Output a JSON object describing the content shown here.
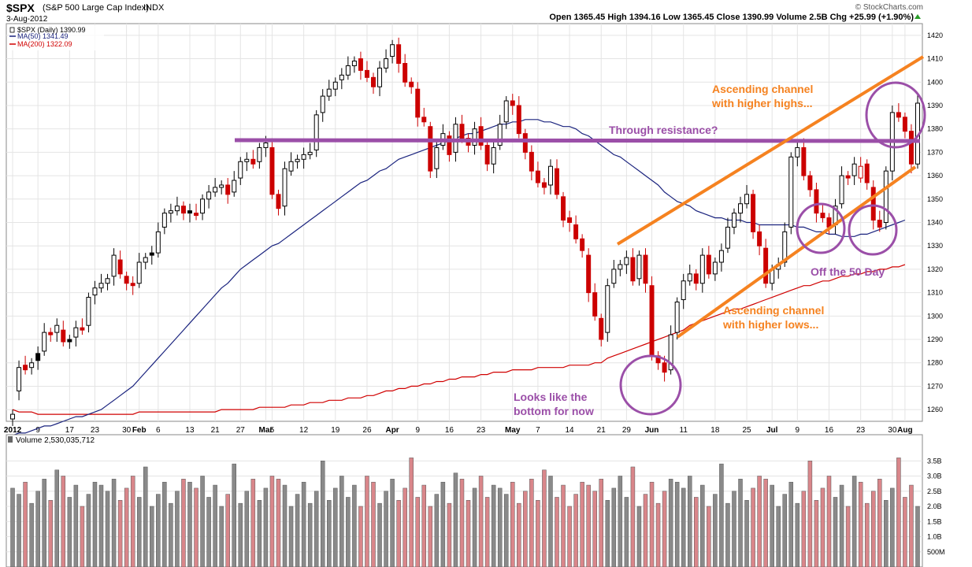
{
  "header": {
    "symbol": "$SPX",
    "name": "(S&P 500 Large Cap Index)",
    "exchange": "INDX",
    "date": "3-Aug-2012",
    "brand": "© StockCharts.com",
    "quote_line": "Open 1365.45  High 1394.16  Low 1365.45  Close 1390.99  Volume 2.5B  Chg +25.99 (+1.90%)"
  },
  "legend": {
    "price": "$SPX (Daily) 1390.99",
    "ma50": "MA(50) 1341.49",
    "ma200": "MA(200) 1322.09"
  },
  "volume_label": "Volume 2,530,035,712",
  "colors": {
    "up": "#000000",
    "down": "#cc0000",
    "ma50": "#1a237e",
    "ma200": "#d00000",
    "channel": "#f58220",
    "resistance": "#9b4fa8",
    "annot_orange": "#f58220",
    "annot_purple": "#9b4fa8",
    "vol_gray": "#8a8a8a",
    "vol_red": "#d9868a"
  },
  "chart_data": {
    "type": "candlestick",
    "ylim": [
      1255,
      1425
    ],
    "y_ticks": [
      1260,
      1270,
      1280,
      1290,
      1300,
      1310,
      1320,
      1330,
      1340,
      1350,
      1360,
      1370,
      1380,
      1390,
      1400,
      1410,
      1420
    ],
    "x_ticks": [
      {
        "label": "2012",
        "i": 0,
        "bold": true
      },
      {
        "label": "9",
        "i": 4
      },
      {
        "label": "17",
        "i": 9
      },
      {
        "label": "23",
        "i": 13
      },
      {
        "label": "30",
        "i": 18
      },
      {
        "label": "Feb",
        "i": 20,
        "bold": true
      },
      {
        "label": "6",
        "i": 23
      },
      {
        "label": "13",
        "i": 28
      },
      {
        "label": "21",
        "i": 32
      },
      {
        "label": "27",
        "i": 36
      },
      {
        "label": "Mar",
        "i": 40,
        "bold": true
      },
      {
        "label": "5",
        "i": 41
      },
      {
        "label": "12",
        "i": 46
      },
      {
        "label": "19",
        "i": 51
      },
      {
        "label": "26",
        "i": 56
      },
      {
        "label": "Apr",
        "i": 60,
        "bold": true
      },
      {
        "label": "9",
        "i": 64
      },
      {
        "label": "16",
        "i": 69
      },
      {
        "label": "23",
        "i": 74
      },
      {
        "label": "May",
        "i": 79,
        "bold": true
      },
      {
        "label": "7",
        "i": 83
      },
      {
        "label": "14",
        "i": 88
      },
      {
        "label": "21",
        "i": 93
      },
      {
        "label": "29",
        "i": 97
      },
      {
        "label": "Jun",
        "i": 101,
        "bold": true
      },
      {
        "label": "11",
        "i": 106
      },
      {
        "label": "18",
        "i": 111
      },
      {
        "label": "25",
        "i": 116
      },
      {
        "label": "Jul",
        "i": 120,
        "bold": true
      },
      {
        "label": "9",
        "i": 124
      },
      {
        "label": "16",
        "i": 129
      },
      {
        "label": "23",
        "i": 134
      },
      {
        "label": "30",
        "i": 139
      },
      {
        "label": "Aug",
        "i": 141,
        "bold": true
      }
    ],
    "closes": [
      1258,
      1278,
      1277,
      1280,
      1281,
      1293,
      1292,
      1296,
      1289,
      1289,
      1295,
      1294,
      1308,
      1312,
      1314,
      1316,
      1326,
      1318,
      1314,
      1313,
      1323,
      1325,
      1326,
      1336,
      1344,
      1345,
      1347,
      1344,
      1344,
      1343,
      1350,
      1353,
      1355,
      1356,
      1352,
      1358,
      1366,
      1367,
      1365,
      1372,
      1374,
      1352,
      1346,
      1363,
      1366,
      1367,
      1369,
      1370,
      1386,
      1394,
      1397,
      1400,
      1403,
      1407,
      1409,
      1405,
      1402,
      1398,
      1406,
      1410,
      1416,
      1408,
      1400,
      1398,
      1385,
      1383,
      1362,
      1372,
      1378,
      1369,
      1382,
      1376,
      1373,
      1380,
      1373,
      1365,
      1372,
      1382,
      1392,
      1390,
      1378,
      1370,
      1362,
      1357,
      1355,
      1364,
      1352,
      1341,
      1340,
      1333,
      1328,
      1310,
      1300,
      1290,
      1313,
      1320,
      1322,
      1325,
      1315,
      1326,
      1314,
      1283,
      1280,
      1276,
      1292,
      1306,
      1315,
      1318,
      1314,
      1326,
      1318,
      1323,
      1328,
      1338,
      1344,
      1348,
      1352,
      1336,
      1330,
      1314,
      1320,
      1322,
      1336,
      1368,
      1372,
      1360,
      1354,
      1344,
      1342,
      1338,
      1347,
      1360,
      1359,
      1365,
      1364,
      1357,
      1341,
      1338,
      1362,
      1387,
      1385,
      1379,
      1365,
      1391
    ],
    "open_offsets": [
      -2,
      -10,
      2,
      -2,
      3,
      -8,
      1,
      -3,
      5,
      1,
      -4,
      1,
      -12,
      -3,
      -2,
      -2,
      -9,
      6,
      3,
      1,
      -9,
      -2,
      1,
      -9,
      -6,
      -1,
      -2,
      3,
      1,
      1,
      -6,
      -3,
      -2,
      -1,
      4,
      -5,
      -7,
      -1,
      2,
      -6,
      -2,
      20,
      6,
      -16,
      -4,
      -1,
      -2,
      -1,
      -15,
      -7,
      -3,
      -3,
      -2,
      -4,
      -2,
      5,
      3,
      4,
      -8,
      -4,
      -5,
      8,
      8,
      2,
      12,
      2,
      19,
      -9,
      -5,
      8,
      -12,
      6,
      3,
      -7,
      8,
      8,
      -7,
      -9,
      -9,
      2,
      12,
      8,
      8,
      5,
      2,
      -8,
      11,
      10,
      2,
      6,
      5,
      16,
      10,
      9,
      -20,
      -6,
      -2,
      -3,
      10,
      -10,
      12,
      30,
      3,
      4,
      -15,
      -13,
      -8,
      -3,
      4,
      -12,
      8,
      -5,
      -5,
      -9,
      -6,
      -4,
      -4,
      16,
      6,
      15,
      -6,
      -2,
      -13,
      -30,
      -4,
      12,
      6,
      10,
      2,
      4,
      -8,
      -12,
      1,
      -5,
      -5,
      8,
      14,
      3,
      -22,
      -25,
      2,
      6,
      14,
      -26
    ],
    "ma50": [
      1249,
      1250,
      1250,
      1251,
      1252,
      1253,
      1253,
      1254,
      1255,
      1256,
      1257,
      1257,
      1258,
      1259,
      1260,
      1262,
      1264,
      1266,
      1268,
      1270,
      1273,
      1276,
      1279,
      1282,
      1285,
      1288,
      1291,
      1294,
      1297,
      1300,
      1303,
      1306,
      1309,
      1312,
      1314,
      1317,
      1320,
      1322,
      1324,
      1326,
      1328,
      1330,
      1331,
      1333,
      1335,
      1337,
      1339,
      1341,
      1343,
      1345,
      1347,
      1349,
      1351,
      1353,
      1355,
      1357,
      1358,
      1360,
      1362,
      1363,
      1365,
      1367,
      1368,
      1369,
      1370,
      1371,
      1372,
      1373,
      1374,
      1375,
      1376,
      1377,
      1378,
      1378,
      1379,
      1380,
      1381,
      1382,
      1382,
      1383,
      1383,
      1384,
      1384,
      1384,
      1383,
      1383,
      1382,
      1381,
      1381,
      1380,
      1378,
      1377,
      1375,
      1373,
      1371,
      1369,
      1368,
      1366,
      1364,
      1362,
      1360,
      1358,
      1356,
      1353,
      1351,
      1349,
      1348,
      1347,
      1345,
      1344,
      1343,
      1342,
      1342,
      1341,
      1341,
      1341,
      1340,
      1340,
      1339,
      1339,
      1339,
      1339,
      1339,
      1339,
      1338,
      1338,
      1337,
      1336,
      1336,
      1335,
      1335,
      1334,
      1334,
      1334,
      1335,
      1335,
      1336,
      1337,
      1338,
      1339,
      1340,
      1341
    ],
    "ma200": [
      1260,
      1259,
      1259,
      1259,
      1258,
      1258,
      1258,
      1258,
      1258,
      1258,
      1258,
      1258,
      1258,
      1258,
      1258,
      1258,
      1258,
      1258,
      1258,
      1258,
      1259,
      1259,
      1259,
      1259,
      1259,
      1259,
      1259,
      1259,
      1259,
      1259,
      1259,
      1259,
      1259,
      1260,
      1260,
      1260,
      1260,
      1260,
      1260,
      1261,
      1261,
      1261,
      1261,
      1261,
      1262,
      1262,
      1262,
      1263,
      1263,
      1263,
      1264,
      1264,
      1264,
      1265,
      1265,
      1265,
      1266,
      1266,
      1267,
      1268,
      1268,
      1269,
      1269,
      1270,
      1270,
      1271,
      1271,
      1272,
      1272,
      1273,
      1273,
      1274,
      1274,
      1274,
      1275,
      1275,
      1276,
      1276,
      1276,
      1277,
      1277,
      1277,
      1277,
      1278,
      1278,
      1278,
      1278,
      1278,
      1279,
      1279,
      1279,
      1279,
      1280,
      1280,
      1282,
      1283,
      1284,
      1285,
      1286,
      1287,
      1288,
      1289,
      1290,
      1291,
      1292,
      1293,
      1294,
      1296,
      1297,
      1298,
      1299,
      1300,
      1301,
      1302,
      1303,
      1303,
      1304,
      1305,
      1306,
      1307,
      1308,
      1309,
      1310,
      1311,
      1312,
      1313,
      1313,
      1314,
      1315,
      1315,
      1316,
      1317,
      1317,
      1318,
      1318,
      1319,
      1319,
      1320,
      1320,
      1321,
      1321,
      1322
    ],
    "vol_ticks": [
      {
        "label": "500M",
        "v": 0.5
      },
      {
        "label": "1.0B",
        "v": 1.0
      },
      {
        "label": "1.5B",
        "v": 1.5
      },
      {
        "label": "2.0B",
        "v": 2.0
      },
      {
        "label": "2.5B",
        "v": 2.5
      },
      {
        "label": "3.0B",
        "v": 3.0
      },
      {
        "label": "3.5B",
        "v": 3.5
      }
    ],
    "vol_max": 4.0
  },
  "annotations": {
    "resistance": "Through resistance?",
    "channel_high_1": "Ascending channel",
    "channel_high_2": "with higher highs...",
    "channel_low_1": "Ascending channel",
    "channel_low_2": "with higher lows...",
    "bottom_1": "Looks like the",
    "bottom_2": "bottom for now",
    "off50": "Off the 50 Day"
  }
}
